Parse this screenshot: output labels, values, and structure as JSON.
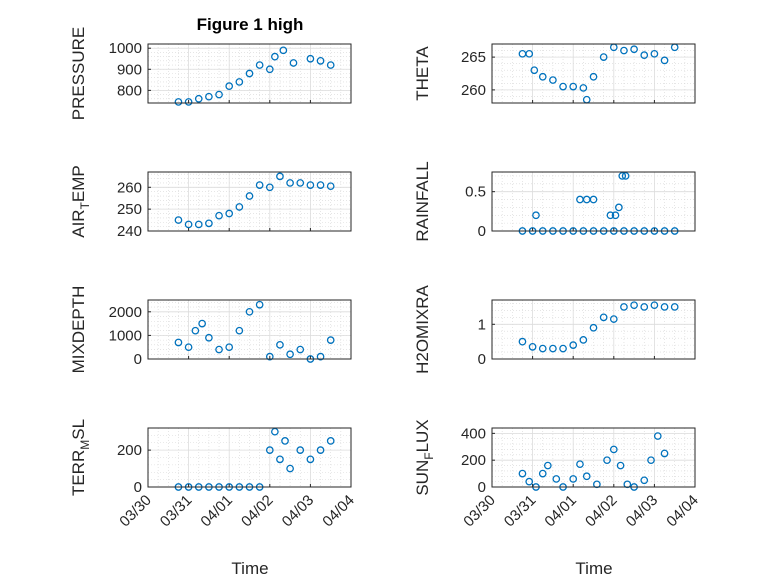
{
  "figure": {
    "title": "Figure 1 high"
  },
  "colors": {
    "marker": "#0072BD",
    "axis": "#262626",
    "grid": "#b0b0b0"
  },
  "chart_data": [
    {
      "type": "scatter",
      "ylabel": "PRESSURE",
      "ylim": [
        740,
        1020
      ],
      "yticks": [
        800,
        900,
        1000
      ],
      "xlim": [
        "03/30",
        "04/04"
      ],
      "xticks": [
        "03/30",
        "03/31",
        "04/01",
        "04/02",
        "04/03",
        "04/04"
      ],
      "grid": "on",
      "minor_grid": "on",
      "points": [
        [
          "03/30 18:00",
          745
        ],
        [
          "03/31 00:00",
          745
        ],
        [
          "03/31 06:00",
          760
        ],
        [
          "03/31 12:00",
          770
        ],
        [
          "03/31 18:00",
          780
        ],
        [
          "04/01 00:00",
          820
        ],
        [
          "04/01 06:00",
          840
        ],
        [
          "04/01 12:00",
          880
        ],
        [
          "04/01 18:00",
          920
        ],
        [
          "04/02 00:00",
          900
        ],
        [
          "04/02 03:00",
          960
        ],
        [
          "04/02 08:00",
          990
        ],
        [
          "04/02 14:00",
          930
        ],
        [
          "04/03 00:00",
          950
        ],
        [
          "04/03 06:00",
          940
        ],
        [
          "04/03 12:00",
          920
        ]
      ]
    },
    {
      "type": "scatter",
      "ylabel": "THETA",
      "ylim": [
        258,
        267
      ],
      "yticks": [
        260,
        265
      ],
      "xlim": [
        "03/30",
        "04/04"
      ],
      "xticks": [
        "03/30",
        "03/31",
        "04/01",
        "04/02",
        "04/03",
        "04/04"
      ],
      "grid": "on",
      "minor_grid": "on",
      "points": [
        [
          "03/30 18:00",
          265.5
        ],
        [
          "03/30 22:00",
          265.5
        ],
        [
          "03/31 01:00",
          263
        ],
        [
          "03/31 06:00",
          262
        ],
        [
          "03/31 12:00",
          261.5
        ],
        [
          "03/31 18:00",
          260.5
        ],
        [
          "04/01 00:00",
          260.5
        ],
        [
          "04/01 06:00",
          260.3
        ],
        [
          "04/01 08:00",
          258.5
        ],
        [
          "04/01 12:00",
          262
        ],
        [
          "04/01 18:00",
          265
        ],
        [
          "04/02 00:00",
          266.5
        ],
        [
          "04/02 06:00",
          266
        ],
        [
          "04/02 12:00",
          266.2
        ],
        [
          "04/02 18:00",
          265.3
        ],
        [
          "04/03 00:00",
          265.5
        ],
        [
          "04/03 06:00",
          264.5
        ],
        [
          "04/03 12:00",
          266.5
        ]
      ]
    },
    {
      "type": "scatter",
      "ylabel": "AIR_TEMP",
      "ylim": [
        240,
        267
      ],
      "yticks": [
        240,
        250,
        260
      ],
      "xlim": [
        "03/30",
        "04/04"
      ],
      "xticks": [
        "03/30",
        "03/31",
        "04/01",
        "04/02",
        "04/03",
        "04/04"
      ],
      "grid": "on",
      "minor_grid": "on",
      "points": [
        [
          "03/30 18:00",
          245
        ],
        [
          "03/31 00:00",
          243
        ],
        [
          "03/31 06:00",
          243
        ],
        [
          "03/31 12:00",
          243.5
        ],
        [
          "03/31 18:00",
          247
        ],
        [
          "04/01 00:00",
          248
        ],
        [
          "04/01 06:00",
          251
        ],
        [
          "04/01 12:00",
          256
        ],
        [
          "04/01 18:00",
          261
        ],
        [
          "04/02 00:00",
          260
        ],
        [
          "04/02 06:00",
          265
        ],
        [
          "04/02 12:00",
          262
        ],
        [
          "04/02 18:00",
          262
        ],
        [
          "04/03 00:00",
          261
        ],
        [
          "04/03 06:00",
          261
        ],
        [
          "04/03 12:00",
          260.5
        ]
      ]
    },
    {
      "type": "scatter",
      "ylabel": "RAINFALL",
      "ylim": [
        0,
        0.75
      ],
      "yticks": [
        0,
        0.5
      ],
      "xlim": [
        "03/30",
        "04/04"
      ],
      "xticks": [
        "03/30",
        "03/31",
        "04/01",
        "04/02",
        "04/03",
        "04/04"
      ],
      "grid": "on",
      "minor_grid": "on",
      "points": [
        [
          "03/30 18:00",
          0
        ],
        [
          "03/31 00:00",
          0
        ],
        [
          "03/31 06:00",
          0
        ],
        [
          "03/31 12:00",
          0
        ],
        [
          "03/31 18:00",
          0
        ],
        [
          "04/01 00:00",
          0
        ],
        [
          "04/01 06:00",
          0
        ],
        [
          "04/01 12:00",
          0
        ],
        [
          "04/01 18:00",
          0
        ],
        [
          "04/02 00:00",
          0
        ],
        [
          "04/02 06:00",
          0
        ],
        [
          "04/02 12:00",
          0
        ],
        [
          "04/02 18:00",
          0
        ],
        [
          "04/03 00:00",
          0
        ],
        [
          "04/03 06:00",
          0
        ],
        [
          "04/03 12:00",
          0
        ],
        [
          "03/31 02:00",
          0.2
        ],
        [
          "04/01 04:00",
          0.4
        ],
        [
          "04/01 08:00",
          0.4
        ],
        [
          "04/01 12:00",
          0.4
        ],
        [
          "04/01 22:00",
          0.2
        ],
        [
          "04/02 01:00",
          0.2
        ],
        [
          "04/02 03:00",
          0.3
        ],
        [
          "04/02 05:00",
          0.7
        ],
        [
          "04/02 07:00",
          0.7
        ]
      ]
    },
    {
      "type": "scatter",
      "ylabel": "MIXDEPTH",
      "ylim": [
        0,
        2500
      ],
      "yticks": [
        0,
        1000,
        2000
      ],
      "xlim": [
        "03/30",
        "04/04"
      ],
      "xticks": [
        "03/30",
        "03/31",
        "04/01",
        "04/02",
        "04/03",
        "04/04"
      ],
      "grid": "on",
      "minor_grid": "on",
      "points": [
        [
          "03/30 18:00",
          700
        ],
        [
          "03/31 00:00",
          500
        ],
        [
          "03/31 04:00",
          1200
        ],
        [
          "03/31 08:00",
          1500
        ],
        [
          "03/31 12:00",
          900
        ],
        [
          "03/31 18:00",
          400
        ],
        [
          "04/01 00:00",
          500
        ],
        [
          "04/01 06:00",
          1200
        ],
        [
          "04/01 12:00",
          2000
        ],
        [
          "04/01 18:00",
          2300
        ],
        [
          "04/02 00:00",
          100
        ],
        [
          "04/02 06:00",
          600
        ],
        [
          "04/02 12:00",
          200
        ],
        [
          "04/02 18:00",
          400
        ],
        [
          "04/03 00:00",
          0
        ],
        [
          "04/03 06:00",
          100
        ],
        [
          "04/03 12:00",
          800
        ]
      ]
    },
    {
      "type": "scatter",
      "ylabel": "H2OMIXRA",
      "ylim": [
        0,
        1.7
      ],
      "yticks": [
        0,
        1
      ],
      "xlim": [
        "03/30",
        "04/04"
      ],
      "xticks": [
        "03/30",
        "03/31",
        "04/01",
        "04/02",
        "04/03",
        "04/04"
      ],
      "grid": "on",
      "minor_grid": "on",
      "points": [
        [
          "03/30 18:00",
          0.5
        ],
        [
          "03/31 00:00",
          0.35
        ],
        [
          "03/31 06:00",
          0.3
        ],
        [
          "03/31 12:00",
          0.3
        ],
        [
          "03/31 18:00",
          0.3
        ],
        [
          "04/01 00:00",
          0.4
        ],
        [
          "04/01 06:00",
          0.55
        ],
        [
          "04/01 12:00",
          0.9
        ],
        [
          "04/01 18:00",
          1.2
        ],
        [
          "04/02 00:00",
          1.15
        ],
        [
          "04/02 06:00",
          1.5
        ],
        [
          "04/02 12:00",
          1.55
        ],
        [
          "04/02 18:00",
          1.5
        ],
        [
          "04/03 00:00",
          1.55
        ],
        [
          "04/03 06:00",
          1.5
        ],
        [
          "04/03 12:00",
          1.5
        ]
      ]
    },
    {
      "type": "scatter",
      "ylabel": "TERR_MSL",
      "ylim": [
        0,
        320
      ],
      "yticks": [
        0,
        200
      ],
      "xlim": [
        "03/30",
        "04/04"
      ],
      "xticks": [
        "03/30",
        "03/31",
        "04/01",
        "04/02",
        "04/03",
        "04/04"
      ],
      "grid": "on",
      "minor_grid": "on",
      "points": [
        [
          "03/30 18:00",
          0
        ],
        [
          "03/31 00:00",
          0
        ],
        [
          "03/31 06:00",
          0
        ],
        [
          "03/31 12:00",
          0
        ],
        [
          "03/31 18:00",
          0
        ],
        [
          "04/01 00:00",
          0
        ],
        [
          "04/01 06:00",
          0
        ],
        [
          "04/01 12:00",
          0
        ],
        [
          "04/01 18:00",
          0
        ],
        [
          "04/02 00:00",
          200
        ],
        [
          "04/02 03:00",
          300
        ],
        [
          "04/02 06:00",
          150
        ],
        [
          "04/02 09:00",
          250
        ],
        [
          "04/02 12:00",
          100
        ],
        [
          "04/02 18:00",
          200
        ],
        [
          "04/03 00:00",
          150
        ],
        [
          "04/03 06:00",
          200
        ],
        [
          "04/03 12:00",
          250
        ]
      ]
    },
    {
      "type": "scatter",
      "ylabel": "SUN_FLUX",
      "ylim": [
        0,
        440
      ],
      "yticks": [
        0,
        200,
        400
      ],
      "xlim": [
        "03/30",
        "04/04"
      ],
      "xticks": [
        "03/30",
        "03/31",
        "04/01",
        "04/02",
        "04/03",
        "04/04"
      ],
      "grid": "on",
      "minor_grid": "on",
      "points": [
        [
          "03/30 18:00",
          100
        ],
        [
          "03/30 22:00",
          40
        ],
        [
          "03/31 02:00",
          0
        ],
        [
          "03/31 06:00",
          100
        ],
        [
          "03/31 09:00",
          160
        ],
        [
          "03/31 14:00",
          60
        ],
        [
          "03/31 18:00",
          0
        ],
        [
          "04/01 00:00",
          60
        ],
        [
          "04/01 04:00",
          170
        ],
        [
          "04/01 08:00",
          80
        ],
        [
          "04/01 14:00",
          20
        ],
        [
          "04/01 20:00",
          200
        ],
        [
          "04/02 00:00",
          280
        ],
        [
          "04/02 04:00",
          160
        ],
        [
          "04/02 08:00",
          20
        ],
        [
          "04/02 12:00",
          0
        ],
        [
          "04/02 18:00",
          50
        ],
        [
          "04/02 22:00",
          200
        ],
        [
          "04/03 02:00",
          380
        ],
        [
          "04/03 06:00",
          250
        ]
      ]
    }
  ],
  "panels": [
    {
      "ylabel_main": "PRESSURE",
      "ylabel_sub": "",
      "ylabel_tail": ""
    },
    {
      "ylabel_main": "THETA",
      "ylabel_sub": "",
      "ylabel_tail": ""
    },
    {
      "ylabel_main": "AIR",
      "ylabel_sub": "T",
      "ylabel_tail": "EMP"
    },
    {
      "ylabel_main": "RAINFALL",
      "ylabel_sub": "",
      "ylabel_tail": ""
    },
    {
      "ylabel_main": "MIXDEPTH",
      "ylabel_sub": "",
      "ylabel_tail": ""
    },
    {
      "ylabel_main": "H2OMIXRA",
      "ylabel_sub": "",
      "ylabel_tail": ""
    },
    {
      "ylabel_main": "TERR",
      "ylabel_sub": "M",
      "ylabel_tail": "SL"
    },
    {
      "ylabel_main": "SUN",
      "ylabel_sub": "F",
      "ylabel_tail": "LUX"
    }
  ],
  "xlabel": "Time"
}
